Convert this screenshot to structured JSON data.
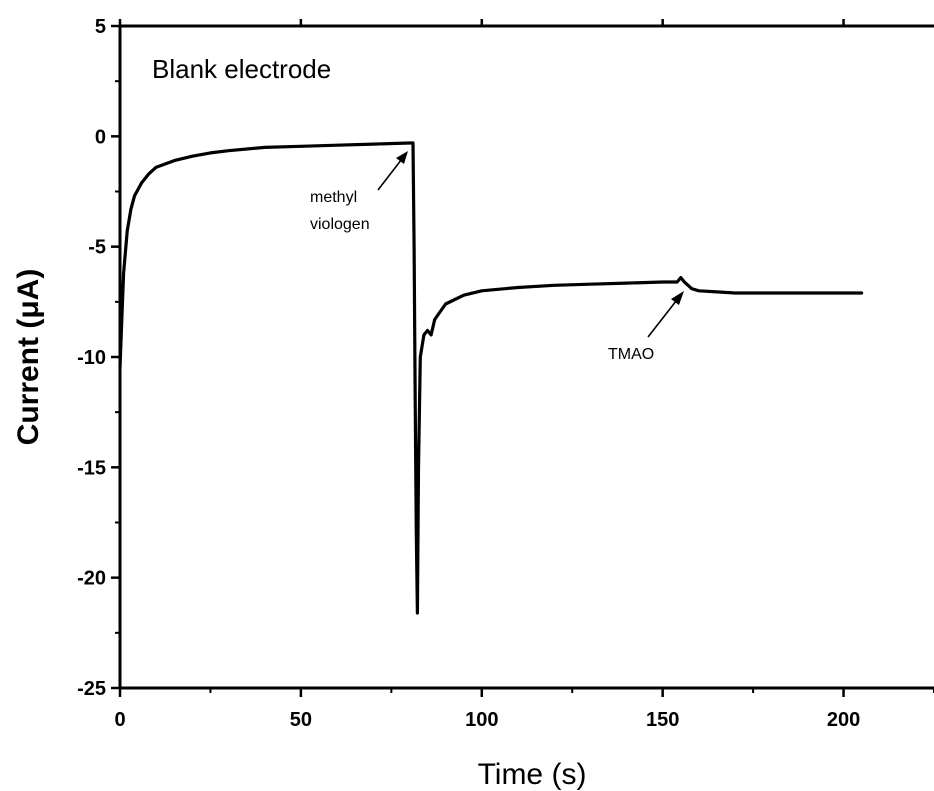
{
  "chart_data": {
    "type": "line",
    "title": "Blank electrode",
    "xlabel": "Time (s)",
    "ylabel": "Current (μA)",
    "xlim": [
      0,
      225
    ],
    "ylim": [
      -25,
      5
    ],
    "xticks": [
      0,
      50,
      100,
      150,
      200
    ],
    "yticks": [
      5,
      0,
      -5,
      -10,
      -15,
      -20,
      -25
    ],
    "grid": false,
    "series": [
      {
        "x": [
          0,
          0.5,
          1,
          2,
          3,
          4,
          6,
          8,
          10,
          15,
          20,
          25,
          30,
          40,
          50,
          60,
          70,
          80,
          81,
          81.3,
          81.6,
          81.9,
          82.2,
          82.5,
          83,
          84,
          85,
          86,
          87,
          90,
          95,
          100,
          110,
          120,
          130,
          140,
          150,
          154,
          155,
          156,
          158,
          160,
          165,
          170,
          180,
          190,
          200,
          205
        ],
        "y": [
          -10.5,
          -8.3,
          -6.2,
          -4.3,
          -3.3,
          -2.7,
          -2.1,
          -1.7,
          -1.4,
          -1.1,
          -0.9,
          -0.75,
          -0.65,
          -0.5,
          -0.45,
          -0.4,
          -0.35,
          -0.3,
          -0.3,
          -5,
          -12,
          -18,
          -21.6,
          -15,
          -10,
          -9,
          -8.8,
          -9,
          -8.3,
          -7.6,
          -7.2,
          -7.0,
          -6.85,
          -6.75,
          -6.7,
          -6.65,
          -6.6,
          -6.6,
          -6.4,
          -6.6,
          -6.9,
          -7.0,
          -7.05,
          -7.1,
          -7.1,
          -7.1,
          -7.1,
          -7.1
        ]
      }
    ],
    "annotations": [
      {
        "text_lines": [
          "methyl",
          "viologen"
        ],
        "arrow_to": [
          81,
          -0.5
        ]
      },
      {
        "text_lines": [
          "TMAO"
        ],
        "arrow_to": [
          155,
          -6.6
        ]
      }
    ]
  }
}
